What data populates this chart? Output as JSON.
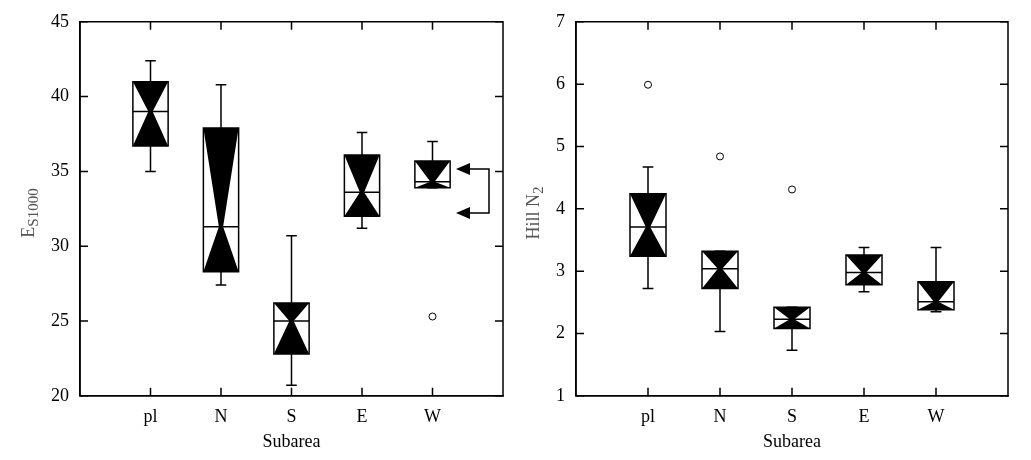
{
  "chart_data": [
    {
      "type": "box",
      "categories": [
        "pl",
        "N",
        "S",
        "E",
        "W"
      ],
      "xlabel": "Subarea",
      "ylabel": "E$_{S1000}$",
      "ylim": [
        20,
        45
      ],
      "yticks": [
        20,
        25,
        30,
        35,
        40,
        45
      ],
      "boxes": [
        {
          "low": 35.0,
          "q1": 36.7,
          "median": 39.0,
          "q3": 41.0,
          "high": 42.4
        },
        {
          "low": 27.4,
          "q1": 28.3,
          "median": 31.3,
          "q3": 37.9,
          "high": 40.8
        },
        {
          "low": 20.7,
          "q1": 22.8,
          "median": 25.0,
          "q3": 26.2,
          "high": 30.7
        },
        {
          "low": 31.2,
          "q1": 32.0,
          "median": 33.6,
          "q3": 36.1,
          "high": 37.6
        },
        {
          "low": 33.9,
          "q1": 33.9,
          "median": 34.3,
          "q3": 35.7,
          "high": 37.0,
          "outliers": [
            25.3
          ]
        }
      ]
    },
    {
      "type": "box",
      "categories": [
        "pl",
        "N",
        "S",
        "E",
        "W"
      ],
      "xlabel": "Subarea",
      "ylabel": "Hill N$_{2}$",
      "ylim": [
        1,
        7
      ],
      "yticks": [
        1,
        2,
        3,
        4,
        5,
        6,
        7
      ],
      "boxes": [
        {
          "low": 2.72,
          "q1": 3.24,
          "median": 3.71,
          "q3": 4.24,
          "high": 4.67,
          "outliers": [
            5.99
          ]
        },
        {
          "low": 2.03,
          "q1": 2.72,
          "median": 3.04,
          "q3": 3.32,
          "high": 3.32,
          "outliers": [
            4.84
          ]
        },
        {
          "low": 1.73,
          "q1": 2.08,
          "median": 2.23,
          "q3": 2.42,
          "high": 2.42,
          "outliers": [
            4.31
          ]
        },
        {
          "low": 2.67,
          "q1": 2.78,
          "median": 2.98,
          "q3": 3.26,
          "high": 3.38
        },
        {
          "low": 2.35,
          "q1": 2.38,
          "median": 2.51,
          "q3": 2.83,
          "high": 3.38
        }
      ]
    }
  ]
}
